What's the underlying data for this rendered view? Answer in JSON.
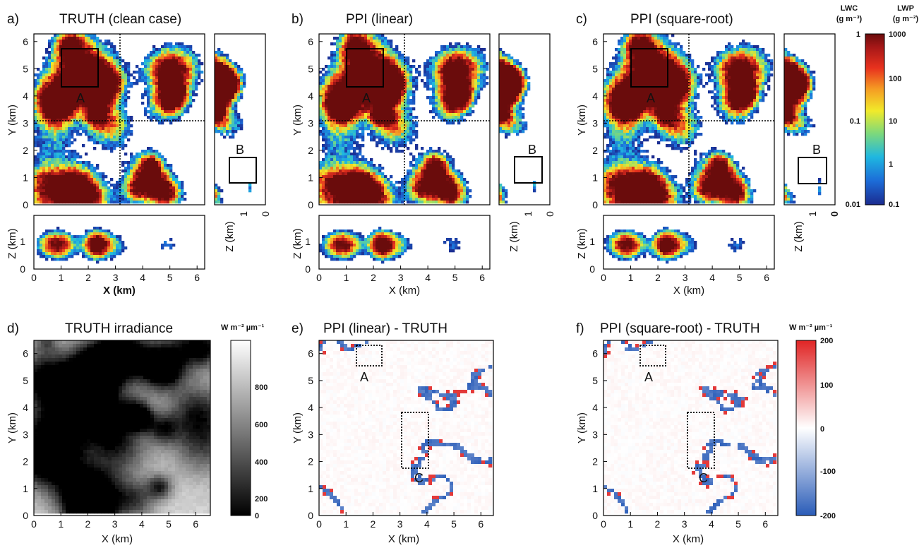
{
  "figure": {
    "panels": {
      "a": {
        "letter": "a)",
        "title": "TRUTH (clean case)",
        "box_a": "A",
        "box_b": "B"
      },
      "b": {
        "letter": "b)",
        "title": "PPI (linear)",
        "box_a": "A",
        "box_b": "B"
      },
      "c": {
        "letter": "c)",
        "title": "PPI (square-root)",
        "box_a": "A",
        "box_b": "B"
      },
      "d": {
        "letter": "d)",
        "title": "TRUTH irradiance"
      },
      "e": {
        "letter": "e)",
        "title": "PPI (linear) - TRUTH",
        "box_a": "A",
        "box_c": "C"
      },
      "f": {
        "letter": "f)",
        "title": "PPI (square-root) - TRUTH",
        "box_a": "A",
        "box_c": "C"
      }
    },
    "axes": {
      "xlabel": "X (km)",
      "ylabel": "Y (km)",
      "zlabel": "Z (km)"
    },
    "colorbars": {
      "lw": {
        "lwc_label": "LWC",
        "lwc_units": "(g m⁻³)",
        "lwp_label": "LWP",
        "lwp_units": "(g m⁻²)",
        "lwc_ticks": [
          "1",
          "0.1",
          "0.01"
        ],
        "lwp_ticks": [
          "1000",
          "100",
          "10",
          "1",
          "0.1"
        ],
        "colors": [
          "#1b2b8f",
          "#1c6cd8",
          "#1fb7e0",
          "#7fd97a",
          "#f1ea2a",
          "#f59a23",
          "#e8321e",
          "#a81818",
          "#6a0c0c"
        ]
      },
      "irradiance": {
        "units": "W m⁻² µm⁻¹",
        "ticks": [
          "800",
          "600",
          "400",
          "200",
          "0"
        ],
        "range": [
          0,
          900
        ]
      },
      "difference": {
        "units": "W m⁻² µm⁻¹",
        "ticks": [
          "200",
          "100",
          "0",
          "-100",
          "-200"
        ],
        "range": [
          -200,
          200
        ],
        "colors": [
          "#2a5cb8",
          "#ffffff",
          "#e02424"
        ]
      }
    }
  },
  "chart_data": [
    {
      "type": "heatmap",
      "panel": "a",
      "xlabel": "",
      "ylabel": "Y (km)",
      "xlim": [
        0,
        6.28
      ],
      "ylim": [
        0,
        6.28
      ],
      "y_ticks": [
        "0",
        "1",
        "2",
        "3",
        "4",
        "5",
        "6"
      ]
    },
    {
      "type": "heatmap",
      "panel": "b",
      "xlabel": "",
      "ylabel": "Y (km)",
      "xlim": [
        0,
        6.28
      ],
      "ylim": [
        0,
        6.28
      ],
      "y_ticks": [
        "0",
        "1",
        "2",
        "3",
        "4",
        "5",
        "6"
      ]
    },
    {
      "type": "heatmap",
      "panel": "c",
      "xlabel": "",
      "ylabel": "Y (km)",
      "xlim": [
        0,
        6.28
      ],
      "ylim": [
        0,
        6.28
      ],
      "y_ticks": [
        "0",
        "1",
        "2",
        "3",
        "4",
        "5",
        "6"
      ]
    },
    {
      "type": "heatmap",
      "panel": "a-xz",
      "xlabel": "X (km)",
      "ylabel": "Z (km)",
      "x_ticks": [
        "0",
        "1",
        "2",
        "3",
        "4",
        "5",
        "6"
      ],
      "z_ticks": [
        "0",
        "1"
      ]
    },
    {
      "type": "heatmap",
      "panel": "d",
      "xlabel": "X (km)",
      "ylabel": "Y (km)",
      "x_ticks": [
        "0",
        "1",
        "2",
        "3",
        "4",
        "5",
        "6"
      ],
      "y_ticks": [
        "0",
        "1",
        "2",
        "3",
        "4",
        "5",
        "6"
      ],
      "colorscale": [
        0,
        900
      ]
    },
    {
      "type": "heatmap",
      "panel": "e",
      "xlabel": "X (km)",
      "ylabel": "Y (km)",
      "x_ticks": [
        "0",
        "1",
        "2",
        "3",
        "4",
        "5",
        "6"
      ],
      "y_ticks": [
        "0",
        "1",
        "2",
        "3",
        "4",
        "5",
        "6"
      ],
      "colorscale": [
        -200,
        200
      ]
    },
    {
      "type": "heatmap",
      "panel": "f",
      "xlabel": "X (km)",
      "ylabel": "Y (km)",
      "x_ticks": [
        "0",
        "1",
        "2",
        "3",
        "4",
        "5",
        "6"
      ],
      "y_ticks": [
        "0",
        "1",
        "2",
        "3",
        "4",
        "5",
        "6"
      ],
      "colorscale": [
        -200,
        200
      ]
    }
  ]
}
